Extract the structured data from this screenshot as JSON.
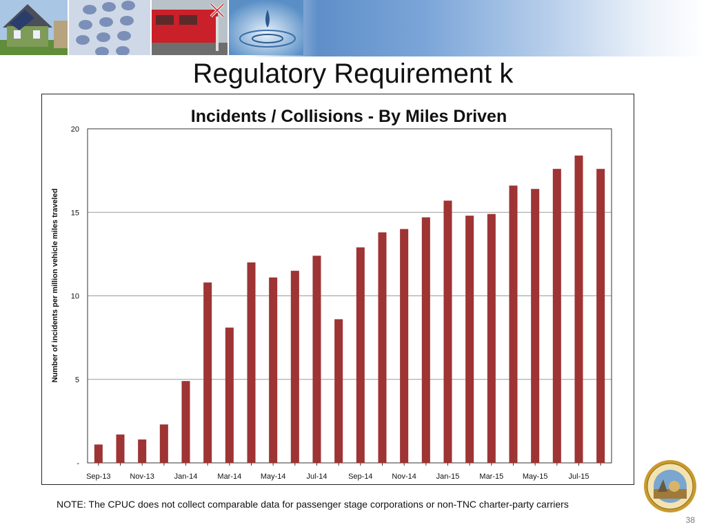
{
  "slide": {
    "title": "Regulatory Requirement k",
    "note": "NOTE: The CPUC does not collect comparable data for passenger stage corporations or non-TNC charter-party carriers",
    "page_number": "38"
  },
  "colors": {
    "bar": "#9e3434",
    "header_blue": "#6b98d0"
  },
  "chart_data": {
    "type": "bar",
    "title": "Incidents / Collisions - By Miles Driven",
    "xlabel": "",
    "ylabel": "Number of incidents per million vehicle miles traveled",
    "ylim": [
      0,
      20
    ],
    "yticks": [
      0,
      5,
      10,
      15,
      20
    ],
    "ytick_labels": [
      "-",
      "5",
      "10",
      "15",
      "20"
    ],
    "grid": true,
    "legend": "none",
    "categories": [
      "Sep-13",
      "Oct-13",
      "Nov-13",
      "Dec-13",
      "Jan-14",
      "Feb-14",
      "Mar-14",
      "Apr-14",
      "May-14",
      "Jun-14",
      "Jul-14",
      "Aug-14",
      "Sep-14",
      "Oct-14",
      "Nov-14",
      "Dec-14",
      "Jan-15",
      "Feb-15",
      "Mar-15",
      "Apr-15",
      "May-15",
      "Jun-15",
      "Jul-15",
      "Aug-15"
    ],
    "xtick_labels": [
      "Sep-13",
      "",
      "Nov-13",
      "",
      "Jan-14",
      "",
      "Mar-14",
      "",
      "May-14",
      "",
      "Jul-14",
      "",
      "Sep-14",
      "",
      "Nov-14",
      "",
      "Jan-15",
      "",
      "Mar-15",
      "",
      "May-15",
      "",
      "Jul-15",
      ""
    ],
    "values": [
      1.1,
      1.7,
      1.4,
      2.3,
      4.9,
      10.8,
      8.1,
      12.0,
      11.1,
      11.5,
      12.4,
      8.6,
      12.9,
      13.8,
      14.0,
      14.7,
      15.7,
      14.8,
      14.9,
      16.6,
      16.4,
      17.6,
      18.4,
      17.6
    ]
  }
}
